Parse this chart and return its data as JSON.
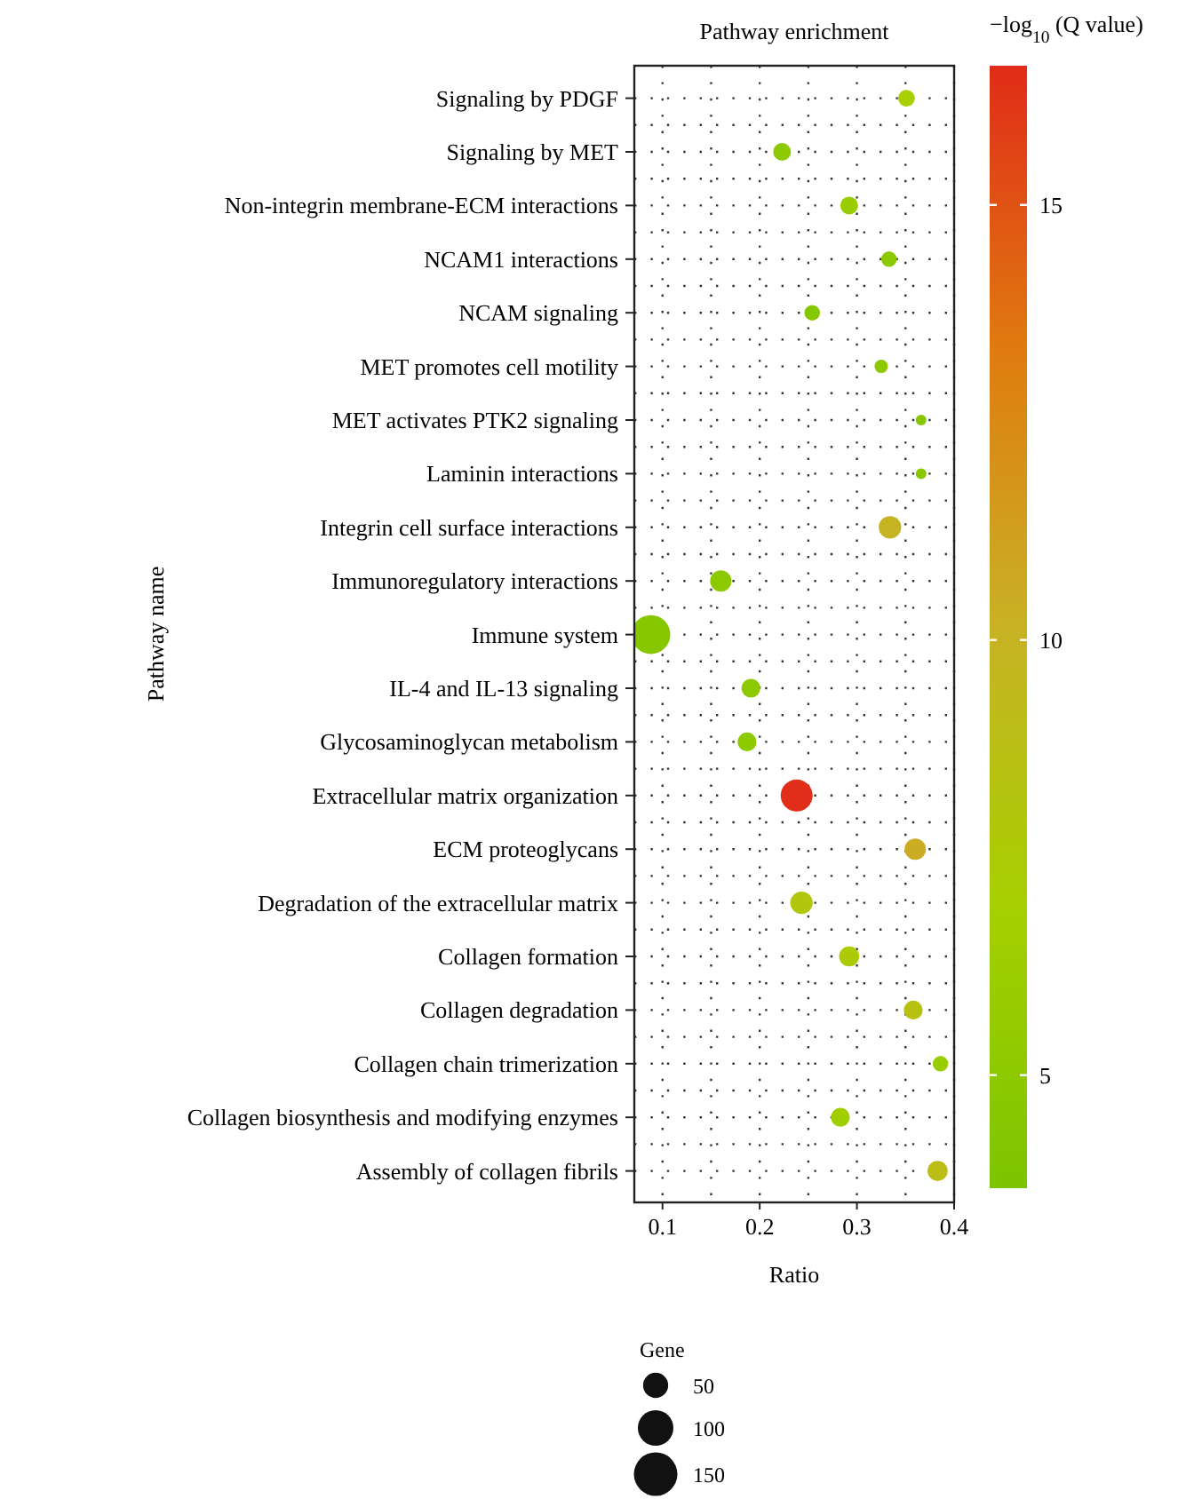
{
  "chart_data": {
    "type": "bubble",
    "title": "Pathway enrichment",
    "xlabel": "Ratio",
    "ylabel": "Pathway name",
    "clabel": "−log$_{10}$ (Q value)",
    "legend_title": "Gene",
    "categories": [
      "Signaling by PDGF",
      "Signaling by MET",
      "Non-integrin membrane-ECM interactions",
      "NCAM1 interactions",
      "NCAM signaling",
      "MET promotes cell motility",
      "MET activates PTK2 signaling",
      "Laminin interactions",
      "Integrin cell surface interactions",
      "Immunoregulatory interactions",
      "Immune system",
      "IL-4 and IL-13 signaling",
      "Glycosaminoglycan metabolism",
      "Extracellular matrix organization",
      "ECM proteoglycans",
      "Degradation of the extracellular matrix",
      "Collagen formation",
      "Collagen degradation",
      "Collagen chain trimerization",
      "Collagen biosynthesis and modifying enzymes",
      "Assembly of collagen fibrils"
    ],
    "values": [
      0.351,
      0.223,
      0.292,
      0.333,
      0.254,
      0.325,
      0.366,
      0.366,
      0.334,
      0.16,
      0.088,
      0.191,
      0.187,
      0.238,
      0.36,
      0.243,
      0.292,
      0.358,
      0.386,
      0.283,
      0.383
    ],
    "sizes": [
      22,
      25,
      25,
      19,
      19,
      14,
      9,
      9,
      40,
      36,
      120,
      28,
      28,
      81,
      36,
      40,
      32,
      28,
      19,
      28,
      32
    ],
    "cvalues": [
      7,
      5,
      6,
      5,
      4.5,
      5,
      4.5,
      4.5,
      10,
      5,
      4.5,
      5,
      5,
      16.5,
      10.5,
      8,
      7.5,
      8.5,
      6,
      6.5,
      9
    ],
    "size_legend": [
      50,
      100,
      150
    ],
    "clim": [
      3.7,
      16.6
    ],
    "cticks": [
      5,
      10,
      15
    ],
    "xlim": [
      0.071,
      0.4
    ],
    "xticks": [
      0.1,
      0.2,
      0.3,
      0.4
    ],
    "grid": true,
    "orientation": "horizontal"
  }
}
